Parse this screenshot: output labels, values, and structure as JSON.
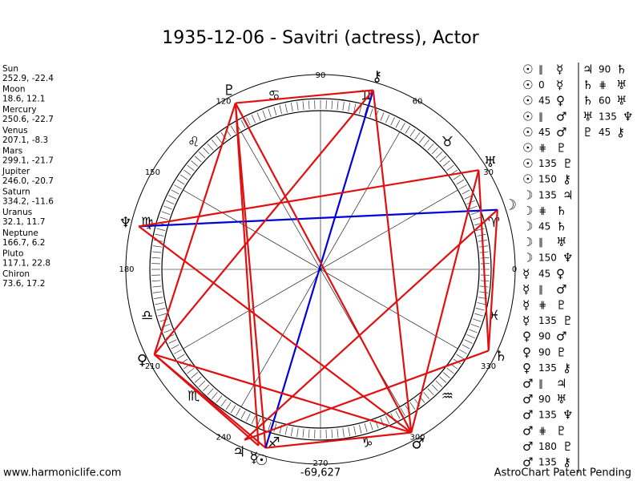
{
  "title": "1935-12-06 - Savitri (actress), Actor",
  "planets": [
    {
      "name": "Sun",
      "coords": "252.9, -22.4",
      "glyph": "☉"
    },
    {
      "name": "Moon",
      "coords": "18.6, 12.1",
      "glyph": "☽"
    },
    {
      "name": "Mercury",
      "coords": "250.6, -22.7",
      "glyph": "☿"
    },
    {
      "name": "Venus",
      "coords": "207.1, -8.3",
      "glyph": "♀"
    },
    {
      "name": "Mars",
      "coords": "299.1, -21.7",
      "glyph": "♂"
    },
    {
      "name": "Jupiter",
      "coords": "246.0, -20.7",
      "glyph": "♃"
    },
    {
      "name": "Saturn",
      "coords": "334.2, -11.6",
      "glyph": "♄"
    },
    {
      "name": "Uranus",
      "coords": "32.1, 11.7",
      "glyph": "♅"
    },
    {
      "name": "Neptune",
      "coords": "166.7, 6.2",
      "glyph": "♆"
    },
    {
      "name": "Pluto",
      "coords": "117.1, 22.8",
      "glyph": "♇"
    },
    {
      "name": "Chiron",
      "coords": "73.6, 17.2",
      "glyph": "⚷"
    }
  ],
  "wheel": {
    "degrees": [
      0,
      30,
      60,
      90,
      120,
      150,
      180,
      210,
      240,
      270,
      300,
      330
    ],
    "signs": [
      "♈",
      "♉",
      "♊",
      "♋",
      "♌",
      "♍",
      "♎",
      "♏",
      "♐",
      "♑",
      "♒",
      "♓"
    ]
  },
  "aspects": [
    [
      "☉",
      "∥",
      "☿"
    ],
    [
      "☉",
      "0",
      "☿"
    ],
    [
      "☉",
      "45",
      "♀"
    ],
    [
      "☉",
      "∥",
      "♂"
    ],
    [
      "☉",
      "45",
      "♂"
    ],
    [
      "☉",
      "⋕",
      "♇"
    ],
    [
      "☉",
      "135",
      "♇"
    ],
    [
      "☉",
      "150",
      "⚷"
    ],
    [
      "☽",
      "135",
      "♃"
    ],
    [
      "☽",
      "⋕",
      "♄"
    ],
    [
      "☽",
      "45",
      "♄"
    ],
    [
      "☽",
      "∥",
      "♅"
    ],
    [
      "☽",
      "150",
      "♆"
    ],
    [
      "☿",
      "45",
      "♀"
    ],
    [
      "☿",
      "∥",
      "♂"
    ],
    [
      "☿",
      "⋕",
      "♇"
    ],
    [
      "☿",
      "135",
      "♇"
    ],
    [
      "♀",
      "90",
      "♂"
    ],
    [
      "♀",
      "90",
      "♇"
    ],
    [
      "♀",
      "135",
      "⚷"
    ],
    [
      "♂",
      "∥",
      "♃"
    ],
    [
      "♂",
      "90",
      "♅"
    ],
    [
      "♂",
      "135",
      "♆"
    ],
    [
      "♂",
      "⋕",
      "♇"
    ],
    [
      "♂",
      "180",
      "♇"
    ],
    [
      "♂",
      "135",
      "⚷"
    ],
    [
      "♃",
      "90",
      "♄"
    ],
    [
      "♄",
      "⋕",
      "♅"
    ],
    [
      "♄",
      "60",
      "♅"
    ],
    [
      "♅",
      "135",
      "♆"
    ],
    [
      "♇",
      "45",
      "⚷"
    ]
  ],
  "footer": {
    "site": "www.harmoniclife.com",
    "score": "-69,627",
    "notice": "AstroChart Patent Pending"
  }
}
